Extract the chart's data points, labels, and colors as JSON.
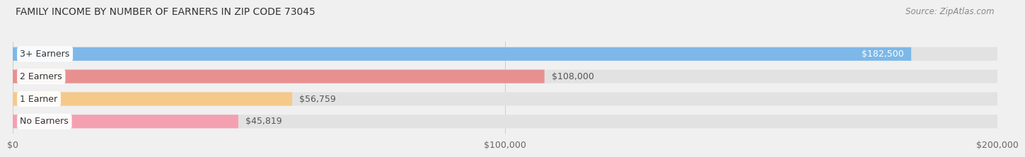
{
  "title": "FAMILY INCOME BY NUMBER OF EARNERS IN ZIP CODE 73045",
  "source": "Source: ZipAtlas.com",
  "categories": [
    "No Earners",
    "1 Earner",
    "2 Earners",
    "3+ Earners"
  ],
  "values": [
    45819,
    56759,
    108000,
    182500
  ],
  "bar_colors": [
    "#f4a0b0",
    "#f5c98a",
    "#e89090",
    "#7db8e8"
  ],
  "bar_label_colors": [
    "#555555",
    "#555555",
    "#555555",
    "#ffffff"
  ],
  "value_labels": [
    "$45,819",
    "$56,759",
    "$108,000",
    "$182,500"
  ],
  "xlim": [
    0,
    200000
  ],
  "xticks": [
    0,
    100000,
    200000
  ],
  "xtick_labels": [
    "$0",
    "$100,000",
    "$200,000"
  ],
  "background_color": "#f0f0f0",
  "bar_bg_color": "#e2e2e2",
  "title_fontsize": 10,
  "source_fontsize": 8.5,
  "label_fontsize": 9,
  "tick_fontsize": 9
}
